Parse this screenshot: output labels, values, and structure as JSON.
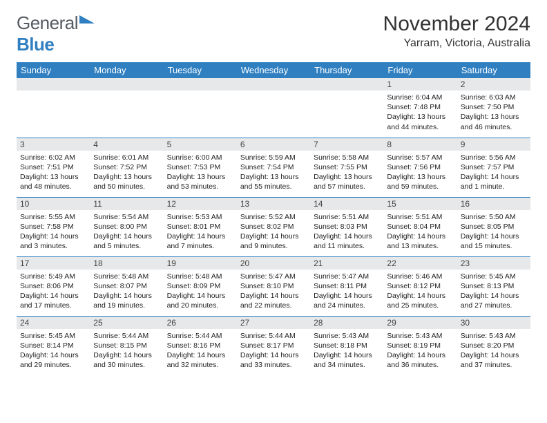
{
  "logo": {
    "text1": "General",
    "text2": "Blue"
  },
  "title": "November 2024",
  "location": "Yarram, Victoria, Australia",
  "colors": {
    "header_bg": "#2f7fc1",
    "header_fg": "#ffffff",
    "daynum_bg": "#e7e8e9",
    "row_border": "#2f7fc1",
    "logo_gray": "#555b62",
    "logo_blue": "#2f7fc1"
  },
  "weekdays": [
    "Sunday",
    "Monday",
    "Tuesday",
    "Wednesday",
    "Thursday",
    "Friday",
    "Saturday"
  ],
  "weeks": [
    [
      null,
      null,
      null,
      null,
      null,
      {
        "n": "1",
        "sr": "6:04 AM",
        "ss": "7:48 PM",
        "dl": "13 hours and 44 minutes."
      },
      {
        "n": "2",
        "sr": "6:03 AM",
        "ss": "7:50 PM",
        "dl": "13 hours and 46 minutes."
      }
    ],
    [
      {
        "n": "3",
        "sr": "6:02 AM",
        "ss": "7:51 PM",
        "dl": "13 hours and 48 minutes."
      },
      {
        "n": "4",
        "sr": "6:01 AM",
        "ss": "7:52 PM",
        "dl": "13 hours and 50 minutes."
      },
      {
        "n": "5",
        "sr": "6:00 AM",
        "ss": "7:53 PM",
        "dl": "13 hours and 53 minutes."
      },
      {
        "n": "6",
        "sr": "5:59 AM",
        "ss": "7:54 PM",
        "dl": "13 hours and 55 minutes."
      },
      {
        "n": "7",
        "sr": "5:58 AM",
        "ss": "7:55 PM",
        "dl": "13 hours and 57 minutes."
      },
      {
        "n": "8",
        "sr": "5:57 AM",
        "ss": "7:56 PM",
        "dl": "13 hours and 59 minutes."
      },
      {
        "n": "9",
        "sr": "5:56 AM",
        "ss": "7:57 PM",
        "dl": "14 hours and 1 minute."
      }
    ],
    [
      {
        "n": "10",
        "sr": "5:55 AM",
        "ss": "7:58 PM",
        "dl": "14 hours and 3 minutes."
      },
      {
        "n": "11",
        "sr": "5:54 AM",
        "ss": "8:00 PM",
        "dl": "14 hours and 5 minutes."
      },
      {
        "n": "12",
        "sr": "5:53 AM",
        "ss": "8:01 PM",
        "dl": "14 hours and 7 minutes."
      },
      {
        "n": "13",
        "sr": "5:52 AM",
        "ss": "8:02 PM",
        "dl": "14 hours and 9 minutes."
      },
      {
        "n": "14",
        "sr": "5:51 AM",
        "ss": "8:03 PM",
        "dl": "14 hours and 11 minutes."
      },
      {
        "n": "15",
        "sr": "5:51 AM",
        "ss": "8:04 PM",
        "dl": "14 hours and 13 minutes."
      },
      {
        "n": "16",
        "sr": "5:50 AM",
        "ss": "8:05 PM",
        "dl": "14 hours and 15 minutes."
      }
    ],
    [
      {
        "n": "17",
        "sr": "5:49 AM",
        "ss": "8:06 PM",
        "dl": "14 hours and 17 minutes."
      },
      {
        "n": "18",
        "sr": "5:48 AM",
        "ss": "8:07 PM",
        "dl": "14 hours and 19 minutes."
      },
      {
        "n": "19",
        "sr": "5:48 AM",
        "ss": "8:09 PM",
        "dl": "14 hours and 20 minutes."
      },
      {
        "n": "20",
        "sr": "5:47 AM",
        "ss": "8:10 PM",
        "dl": "14 hours and 22 minutes."
      },
      {
        "n": "21",
        "sr": "5:47 AM",
        "ss": "8:11 PM",
        "dl": "14 hours and 24 minutes."
      },
      {
        "n": "22",
        "sr": "5:46 AM",
        "ss": "8:12 PM",
        "dl": "14 hours and 25 minutes."
      },
      {
        "n": "23",
        "sr": "5:45 AM",
        "ss": "8:13 PM",
        "dl": "14 hours and 27 minutes."
      }
    ],
    [
      {
        "n": "24",
        "sr": "5:45 AM",
        "ss": "8:14 PM",
        "dl": "14 hours and 29 minutes."
      },
      {
        "n": "25",
        "sr": "5:44 AM",
        "ss": "8:15 PM",
        "dl": "14 hours and 30 minutes."
      },
      {
        "n": "26",
        "sr": "5:44 AM",
        "ss": "8:16 PM",
        "dl": "14 hours and 32 minutes."
      },
      {
        "n": "27",
        "sr": "5:44 AM",
        "ss": "8:17 PM",
        "dl": "14 hours and 33 minutes."
      },
      {
        "n": "28",
        "sr": "5:43 AM",
        "ss": "8:18 PM",
        "dl": "14 hours and 34 minutes."
      },
      {
        "n": "29",
        "sr": "5:43 AM",
        "ss": "8:19 PM",
        "dl": "14 hours and 36 minutes."
      },
      {
        "n": "30",
        "sr": "5:43 AM",
        "ss": "8:20 PM",
        "dl": "14 hours and 37 minutes."
      }
    ]
  ],
  "labels": {
    "sunrise": "Sunrise:",
    "sunset": "Sunset:",
    "daylight": "Daylight:"
  }
}
